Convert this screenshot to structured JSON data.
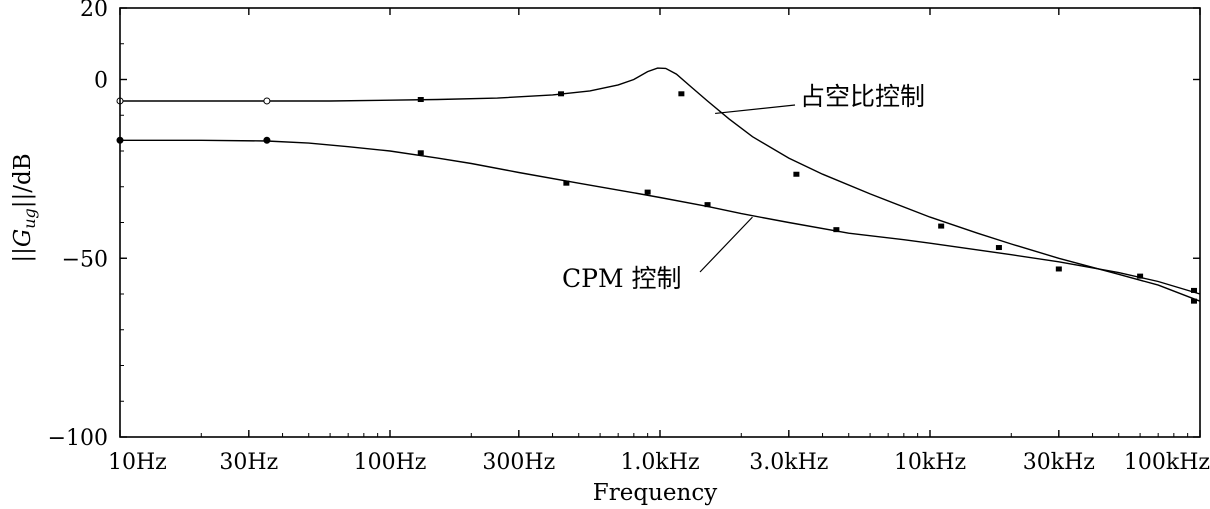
{
  "chart_data": {
    "type": "line",
    "title": "",
    "xlabel": "Frequency",
    "ylabel": "||G_ug||/dB",
    "ylabel_parts": {
      "left": "||",
      "symbol": "G",
      "sub": "ug",
      "right": "||/dB"
    },
    "x_scale": "log",
    "xlim": [
      10,
      100000
    ],
    "ylim": [
      -100,
      20
    ],
    "x_ticks": [
      {
        "value": 10,
        "label": "10Hz"
      },
      {
        "value": 30,
        "label": "30Hz"
      },
      {
        "value": 100,
        "label": "100Hz"
      },
      {
        "value": 300,
        "label": "300Hz"
      },
      {
        "value": 1000,
        "label": "1.0kHz"
      },
      {
        "value": 3000,
        "label": "3.0kHz"
      },
      {
        "value": 10000,
        "label": "10kHz"
      },
      {
        "value": 30000,
        "label": "30kHz"
      },
      {
        "value": 100000,
        "label": "100kHz"
      }
    ],
    "y_ticks": [
      {
        "value": 20,
        "label": "20"
      },
      {
        "value": 0,
        "label": "0"
      },
      {
        "value": -50,
        "label": "−50"
      },
      {
        "value": -100,
        "label": "−100"
      }
    ],
    "grid": false,
    "series": [
      {
        "name": "占空比控制",
        "points": [
          [
            10,
            -6
          ],
          [
            20,
            -6
          ],
          [
            35,
            -6
          ],
          [
            60,
            -6
          ],
          [
            100,
            -5.8
          ],
          [
            150,
            -5.6
          ],
          [
            250,
            -5.2
          ],
          [
            400,
            -4.3
          ],
          [
            550,
            -3.2
          ],
          [
            700,
            -1.5
          ],
          [
            800,
            0
          ],
          [
            900,
            2.2
          ],
          [
            980,
            3.2
          ],
          [
            1050,
            3.1
          ],
          [
            1150,
            1.5
          ],
          [
            1300,
            -2
          ],
          [
            1500,
            -6
          ],
          [
            1800,
            -11
          ],
          [
            2200,
            -16
          ],
          [
            3000,
            -22
          ],
          [
            4000,
            -26.5
          ],
          [
            6000,
            -32
          ],
          [
            10000,
            -38.5
          ],
          [
            15000,
            -43
          ],
          [
            20000,
            -46
          ],
          [
            30000,
            -50
          ],
          [
            50000,
            -54.5
          ],
          [
            70000,
            -57.5
          ],
          [
            100000,
            -62
          ]
        ],
        "markers": [
          [
            10,
            -6
          ],
          [
            35,
            -6
          ],
          [
            130,
            -5.6
          ],
          [
            430,
            -4
          ],
          [
            1200,
            -4
          ],
          [
            3200,
            -26.5
          ],
          [
            11000,
            -41
          ],
          [
            30000,
            -53
          ],
          [
            95000,
            -62
          ]
        ]
      },
      {
        "name": "CPM 控制",
        "points": [
          [
            10,
            -17
          ],
          [
            20,
            -17
          ],
          [
            35,
            -17.2
          ],
          [
            50,
            -17.8
          ],
          [
            70,
            -18.8
          ],
          [
            100,
            -20
          ],
          [
            150,
            -22
          ],
          [
            200,
            -23.5
          ],
          [
            300,
            -26
          ],
          [
            500,
            -29
          ],
          [
            800,
            -31.7
          ],
          [
            1000,
            -33
          ],
          [
            1500,
            -35.5
          ],
          [
            2000,
            -37.5
          ],
          [
            3000,
            -40
          ],
          [
            5000,
            -43
          ],
          [
            8000,
            -44.8
          ],
          [
            10000,
            -45.8
          ],
          [
            20000,
            -49
          ],
          [
            30000,
            -51
          ],
          [
            50000,
            -54
          ],
          [
            70000,
            -56.5
          ],
          [
            100000,
            -60
          ]
        ],
        "markers": [
          [
            10,
            -17
          ],
          [
            35,
            -17
          ],
          [
            130,
            -20.5
          ],
          [
            450,
            -29
          ],
          [
            900,
            -31.5
          ],
          [
            1500,
            -35
          ],
          [
            4500,
            -42
          ],
          [
            18000,
            -47
          ],
          [
            60000,
            -55
          ],
          [
            95000,
            -59
          ]
        ]
      }
    ],
    "annotations": [
      {
        "text": "占空比控制",
        "series": 0
      },
      {
        "text": "CPM 控制",
        "series": 1
      }
    ]
  }
}
